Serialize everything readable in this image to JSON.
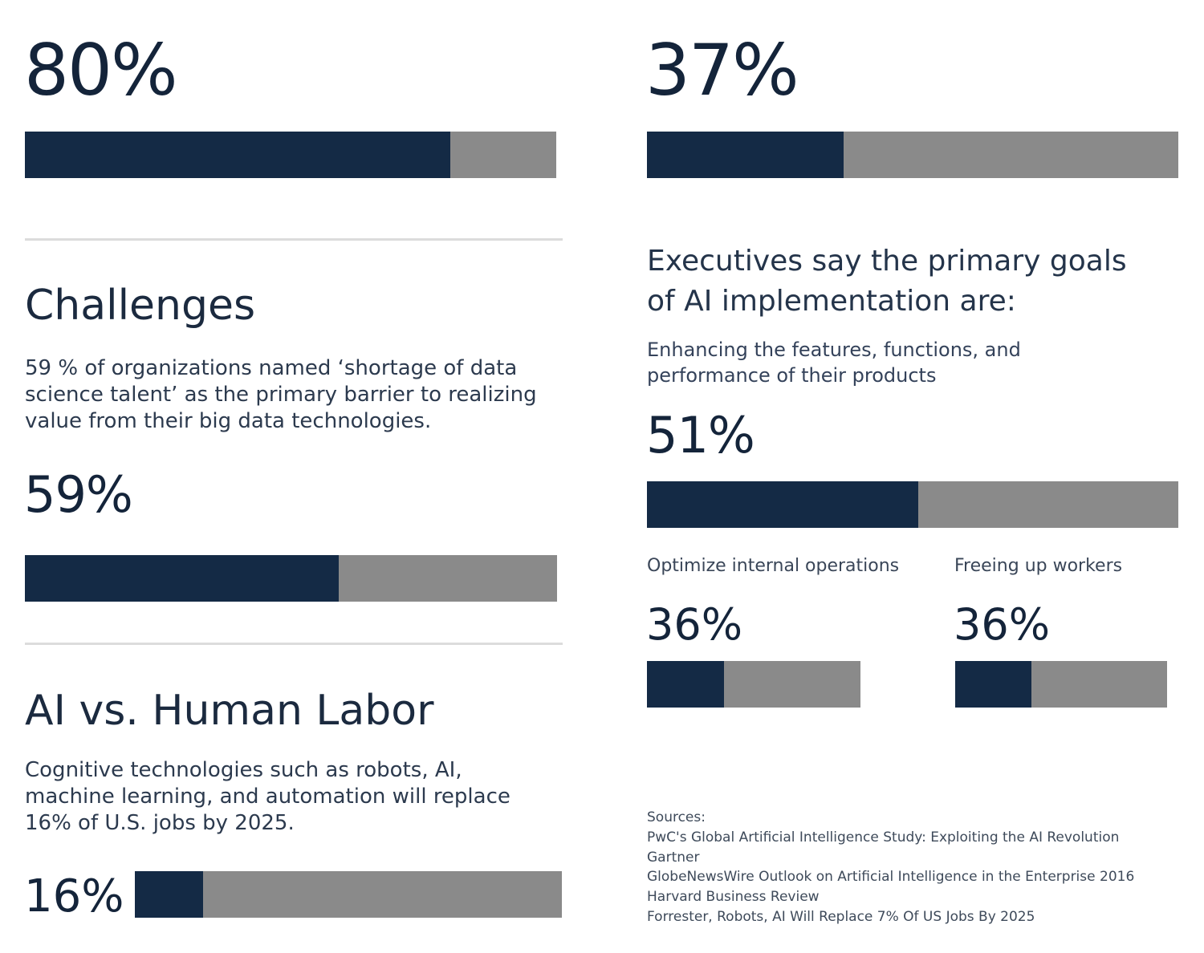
{
  "colors": {
    "fill": "#142a45",
    "track": "#8a8a8a",
    "text": "#14243a",
    "rule": "#dcdcdc"
  },
  "left": {
    "stat1": {
      "value_label": "80%",
      "value": 80
    },
    "challenges": {
      "title": "Challenges",
      "text": "59 % of organizations named ‘shortage of data science talent’ as the primary barrier to realizing value from their big data technologies.",
      "value_label": "59%",
      "value": 59
    },
    "labor": {
      "title": "AI vs. Human Labor",
      "text": "Cognitive technologies such as robots, AI, machine learning, and automation will replace 16% of U.S. jobs by 2025.",
      "value_label": "16%",
      "value": 16
    }
  },
  "right": {
    "stat1": {
      "value_label": "37%",
      "value": 37
    },
    "goals": {
      "title": "Executives say the primary goals of AI implementation are:",
      "item1": {
        "label": "Enhancing the features, functions, and performance of their products",
        "value_label": "51%",
        "value": 51
      },
      "item2": {
        "label": "Optimize internal operations",
        "value_label": "36%",
        "value": 36
      },
      "item3": {
        "label": "Freeing up workers",
        "value_label": "36%",
        "value": 36
      }
    },
    "sources": {
      "heading": "Sources:",
      "items": [
        "PwC's Global Artificial Intelligence Study: Exploiting the AI Revolution",
        "Gartner",
        "GlobeNewsWire Outlook on Artificial Intelligence in the Enterprise 2016",
        "Harvard Business Review",
        "Forrester, Robots, AI Will Replace 7% Of US Jobs By 2025"
      ]
    }
  },
  "chart_data": {
    "type": "bar",
    "categories": [
      "80%",
      "37%",
      "Challenges",
      "Enhancing the features, functions, and performance of their products",
      "Optimize internal operations",
      "Freeing up workers",
      "AI vs. Human Labor"
    ],
    "values": [
      80,
      37,
      59,
      51,
      36,
      36,
      16
    ],
    "ylim": [
      0,
      100
    ]
  }
}
